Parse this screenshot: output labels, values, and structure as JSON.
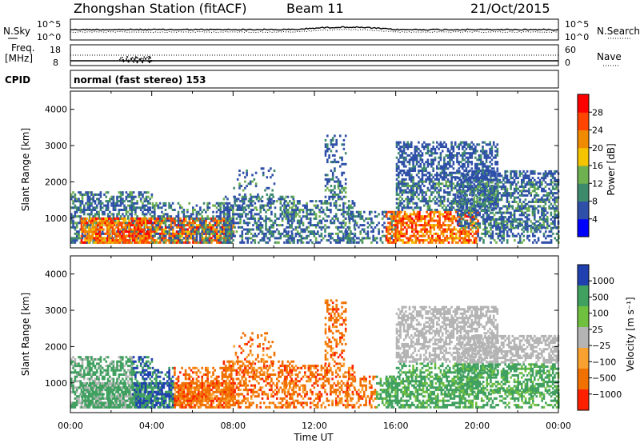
{
  "header": {
    "station": "Zhongshan Station (fitACF)",
    "beam": "Beam 11",
    "date": "21/Oct/2015"
  },
  "noise_panel": {
    "left_label": "N.Sky",
    "right_label": "N.Search",
    "left_ticks": [
      "10^5",
      "10^0"
    ],
    "right_ticks": [
      "10^5",
      "10^0"
    ]
  },
  "freq_panel": {
    "left_label_1": "Freq.",
    "left_label_2": "[MHz]",
    "right_label": "Nave",
    "left_ticks": [
      "18",
      "8"
    ],
    "right_ticks": [
      "60",
      "0"
    ]
  },
  "cpid_panel": {
    "label": "CPID",
    "text": "normal (fast stereo) 153"
  },
  "colors": {
    "power": [
      "#0000ff",
      "#2f50a8",
      "#3e8a6d",
      "#6fb050",
      "#f5c400",
      "#f08a00",
      "#ff4500",
      "#ff0000"
    ],
    "velocity": [
      "#2040b0",
      "#40a060",
      "#70c040",
      "#b4b4b4",
      "#f8a030",
      "#f07000",
      "#ff2000"
    ]
  },
  "chart_data": [
    {
      "type": "heatmap",
      "name": "power",
      "ylabel": "Slant Range [km]",
      "xlabel": "Time UT",
      "x_range_hours": [
        0,
        24
      ],
      "ylim": [
        180,
        4500
      ],
      "yticks": [
        "1000",
        "2000",
        "3000",
        "4000"
      ],
      "xticks": [
        "00:00",
        "04:00",
        "08:00",
        "12:00",
        "16:00",
        "20:00",
        "00:00"
      ],
      "colorbar": {
        "label": "Power [dB]",
        "ticks": [
          "4",
          "8",
          "12",
          "16",
          "20",
          "24",
          "28"
        ],
        "range": [
          0,
          32
        ]
      }
    },
    {
      "type": "heatmap",
      "name": "velocity",
      "ylabel": "Slant Range [km]",
      "xlabel": "Time UT",
      "x_range_hours": [
        0,
        24
      ],
      "ylim": [
        180,
        4500
      ],
      "yticks": [
        "1000",
        "2000",
        "3000",
        "4000"
      ],
      "xticks": [
        "00:00",
        "04:00",
        "08:00",
        "12:00",
        "16:00",
        "20:00",
        "00:00"
      ],
      "colorbar": {
        "label": "Velocity [m s⁻¹]",
        "ticks": [
          "1000",
          "500",
          "100",
          "25",
          "−25",
          "−100",
          "−500",
          "−1000"
        ]
      }
    }
  ]
}
